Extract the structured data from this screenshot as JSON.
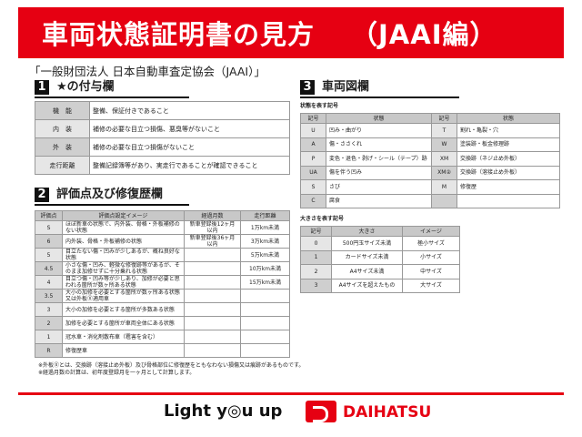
{
  "header": {
    "title": "車両状態証明書の見方",
    "subtitle": "（JAAI編）"
  },
  "org": "「一般財団法人 日本自動車査定協会（JAAI）」",
  "s1": {
    "num": "1",
    "title": "★の付与欄",
    "rows": [
      [
        "機　能",
        "整備、保証付きであること"
      ],
      [
        "内　装",
        "補修の必要な目立つ損傷、悪臭等がないこと"
      ],
      [
        "外　装",
        "補修の必要な目立つ損傷がないこと"
      ],
      [
        "走行距離",
        "整備記録簿等があり、実走行であることが確認できること"
      ]
    ]
  },
  "s2": {
    "num": "2",
    "title": "評価点及び修復歴欄",
    "headers": [
      "評価点",
      "評価点設定イメージ",
      "経過月数",
      "走行距離"
    ],
    "rows": [
      [
        "S",
        "ほぼ新車の状態で、内外装、骨格・外板補修のない状態",
        "新車登録後12ヶ月以内",
        "1万km未満"
      ],
      [
        "6",
        "内外装、骨格・外板補修の状態",
        "新車登録後36ヶ月以内",
        "3万km未満"
      ],
      [
        "5",
        "目立たない傷・凹みが少しあるが、概ね良好な状態",
        "",
        "5万km未満"
      ],
      [
        "4.5",
        "小さな傷・凹み、軽微な修復跡等があるが、そのまま加修せずに十分乗れる状態",
        "",
        "10万km未満"
      ],
      [
        "4",
        "目立つ傷・凹み等が少しあり、加修が必要と思われる箇所が数ヶ所ある状態",
        "",
        "15万km未満"
      ],
      [
        "3.5",
        "大小の加修を必要とする箇所が数ヶ所ある状態又は外板Ⓧ適用車",
        "",
        ""
      ],
      [
        "3",
        "大小の加修を必要とする箇所が多数ある状態",
        "",
        ""
      ],
      [
        "2",
        "加修を必要とする箇所が車両全体にある状態",
        "",
        ""
      ],
      [
        "1",
        "冠水車・消化剤散布車（雹害を含む）",
        "",
        ""
      ],
      [
        "R",
        "修復歴車",
        "",
        ""
      ]
    ]
  },
  "notes": [
    "※外板Ⓧとは、交換跡（溶接止め外板）及び骨格部位に修復歴をともなわない損傷又は痕跡があるものです。",
    "※経過月数の計算は、初年度登録月を一ヶ月として計算します。"
  ],
  "s3": {
    "num": "3",
    "title": "車両図欄",
    "state_label": "状態を表す記号",
    "state_headers": [
      "記号",
      "状態",
      "記号",
      "状態"
    ],
    "state_rows": [
      [
        "U",
        "凹み・曲がり",
        "T",
        "割れ・亀裂・穴"
      ],
      [
        "A",
        "傷・ささくれ",
        "W",
        "塗装跡・板金修理跡"
      ],
      [
        "P",
        "変色・退色・剥げ・シール（テープ）跡",
        "XM",
        "交換跡（ネジ止め外板）"
      ],
      [
        "UA",
        "傷を伴う凹み",
        "XM②",
        "交換跡（溶接止め外板）"
      ],
      [
        "S",
        "さび",
        "M",
        "修復歴"
      ],
      [
        "C",
        "腐食",
        "",
        ""
      ]
    ],
    "size_label": "大きさを表す記号",
    "size_headers": [
      "記号",
      "大きさ",
      "イメージ"
    ],
    "size_rows": [
      [
        "0",
        "500円玉サイズ未満",
        "極小サイズ"
      ],
      [
        "1",
        "カードサイズ未満",
        "小サイズ"
      ],
      [
        "2",
        "A4サイズ未満",
        "中サイズ"
      ],
      [
        "3",
        "A4サイズを超えたもの",
        "大サイズ"
      ]
    ]
  },
  "footer": {
    "slogan": "Light y◎u up",
    "brand": "DAIHATSU"
  },
  "colors": {
    "brand_red": "#e60012"
  }
}
